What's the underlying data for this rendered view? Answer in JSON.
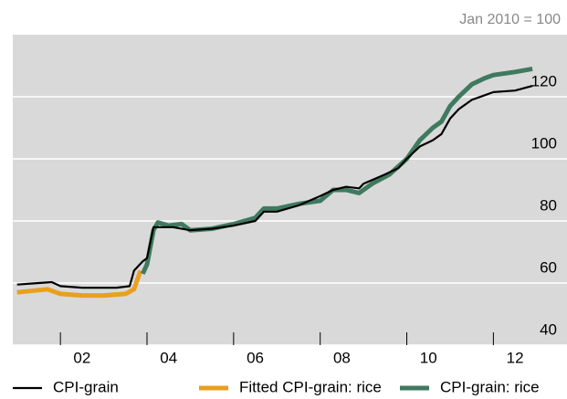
{
  "chart_data": {
    "type": "line",
    "unit_note": "Jan 2010 = 100",
    "xlim": [
      2000.9,
      2013.7
    ],
    "ylim": [
      40,
      140
    ],
    "xticks": [
      {
        "value": 2002.5,
        "label": "02"
      },
      {
        "value": 2004.5,
        "label": "04"
      },
      {
        "value": 2006.5,
        "label": "06"
      },
      {
        "value": 2008.5,
        "label": "08"
      },
      {
        "value": 2010.5,
        "label": "10"
      },
      {
        "value": 2012.5,
        "label": "12"
      }
    ],
    "minor_xticks": [
      2002,
      2004,
      2006,
      2008,
      2010,
      2012
    ],
    "yticks": [
      40,
      60,
      80,
      100,
      120
    ],
    "grid": true,
    "series": [
      {
        "name": "CPI-grain",
        "color": "#000000",
        "x": [
          2001.0,
          2001.5,
          2001.8,
          2002.0,
          2002.5,
          2003.0,
          2003.3,
          2003.6,
          2003.7,
          2003.9,
          2004.0,
          2004.15,
          2004.3,
          2004.6,
          2005.0,
          2005.5,
          2006.0,
          2006.5,
          2006.7,
          2007.0,
          2007.5,
          2008.0,
          2008.3,
          2008.6,
          2008.9,
          2009.0,
          2009.5,
          2009.8,
          2010.0,
          2010.3,
          2010.6,
          2010.8,
          2011.0,
          2011.2,
          2011.5,
          2011.8,
          2012.0,
          2012.5,
          2012.9
        ],
        "values": [
          59.5,
          60,
          60.3,
          59,
          58.5,
          58.5,
          58.5,
          59,
          64,
          67,
          68,
          78,
          78,
          78,
          77,
          77.5,
          78.5,
          80,
          83,
          83,
          85,
          88,
          90,
          91,
          90.5,
          92,
          95,
          97,
          100,
          104,
          106,
          108,
          113,
          116,
          119,
          120.5,
          121.5,
          122,
          123.5
        ]
      },
      {
        "name": "Fitted CPI-grain: rice",
        "color": "#e8a020",
        "x": [
          2001.0,
          2001.7,
          2002.0,
          2002.5,
          2003.0,
          2003.5,
          2003.7,
          2003.85
        ],
        "values": [
          57,
          58,
          56.5,
          56,
          56,
          56.5,
          58,
          64
        ]
      },
      {
        "name": "CPI-grain: rice",
        "color": "#3f7a5f",
        "x": [
          2003.9,
          2004.0,
          2004.15,
          2004.25,
          2004.5,
          2004.8,
          2005.0,
          2005.5,
          2006.0,
          2006.5,
          2006.7,
          2007.0,
          2007.5,
          2008.0,
          2008.3,
          2008.6,
          2008.9,
          2009.2,
          2009.6,
          2010.0,
          2010.3,
          2010.6,
          2010.8,
          2011.0,
          2011.2,
          2011.5,
          2011.8,
          2012.0,
          2012.5,
          2012.9
        ],
        "values": [
          63,
          66,
          77,
          79.5,
          78.5,
          79,
          77,
          77.5,
          79,
          81,
          84,
          84,
          85.5,
          86.5,
          90,
          90,
          89,
          92,
          95,
          100,
          106,
          110,
          112,
          117,
          120,
          124,
          126,
          127,
          128,
          129
        ]
      }
    ]
  }
}
